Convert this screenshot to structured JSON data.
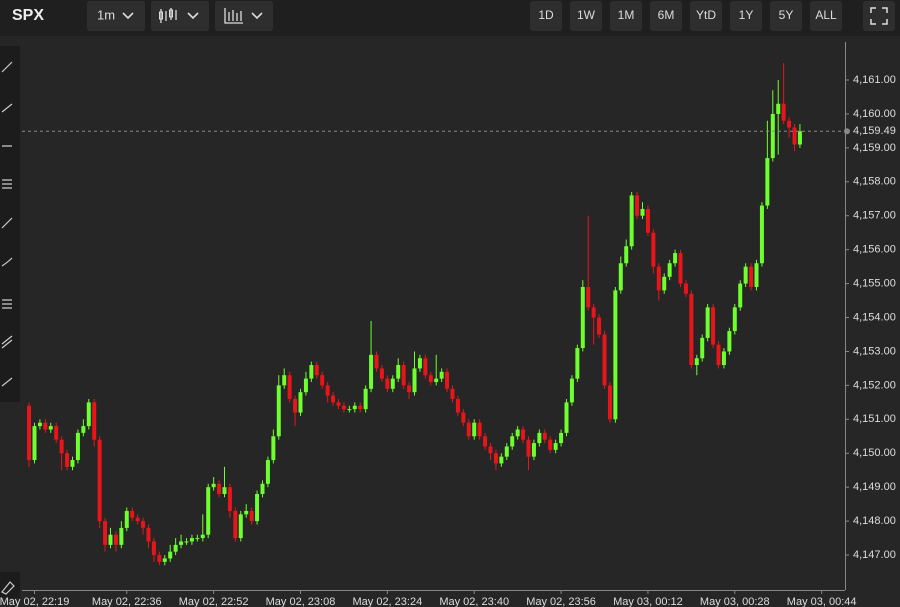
{
  "toolbar": {
    "symbol": "SPX",
    "interval": "1m",
    "ranges": [
      "1D",
      "1W",
      "1M",
      "6M",
      "YtD",
      "1Y",
      "5Y",
      "ALL"
    ]
  },
  "chart_data": {
    "type": "candlestick",
    "up_color": "#6dff2e",
    "down_color": "#e8151b",
    "x": [
      0,
      1,
      2,
      3,
      4,
      5,
      6,
      7,
      8,
      9,
      10,
      11,
      12,
      13,
      14,
      15,
      16,
      17,
      18,
      19,
      20,
      21,
      22,
      23,
      24,
      25,
      26,
      27,
      28,
      29,
      30,
      31,
      32,
      33,
      34,
      35,
      36,
      37,
      38,
      39,
      40,
      41,
      42,
      43,
      44,
      45,
      46,
      47,
      48,
      49,
      50,
      51,
      52,
      53,
      54,
      55,
      56,
      57,
      58,
      59,
      60,
      61,
      62,
      63,
      64,
      65,
      66,
      67,
      68,
      69,
      70,
      71,
      72,
      73,
      74,
      75,
      76,
      77,
      78,
      79,
      80,
      81,
      82,
      83,
      84,
      85,
      86,
      87,
      88,
      89,
      90,
      91,
      92,
      93,
      94,
      95,
      96,
      97,
      98,
      99,
      100,
      101,
      102,
      103,
      104,
      105,
      106,
      107,
      108,
      109,
      110,
      111,
      112,
      113,
      114,
      115,
      116,
      117,
      118,
      119,
      120,
      121,
      122,
      123,
      124,
      125,
      126,
      127,
      128,
      129,
      130,
      131,
      132,
      133,
      134,
      135,
      136,
      137,
      138,
      139,
      140,
      141,
      142
    ],
    "open": [
      4151.4,
      4149.8,
      4150.8,
      4150.9,
      4150.7,
      4150.8,
      4150.4,
      4150.0,
      4149.6,
      4149.8,
      4150.6,
      4150.8,
      4151.5,
      4150.4,
      4148.0,
      4147.3,
      4147.6,
      4147.3,
      4147.8,
      4148.3,
      4148.1,
      4148.0,
      4147.8,
      4147.4,
      4147.0,
      4146.8,
      4146.9,
      4147.1,
      4147.3,
      4147.4,
      4147.4,
      4147.5,
      4147.5,
      4147.6,
      4149.0,
      4149.1,
      4148.8,
      4149.0,
      4148.3,
      4147.5,
      4148.2,
      4148.3,
      4148.0,
      4148.8,
      4149.1,
      4149.8,
      4150.5,
      4152.0,
      4152.3,
      4151.6,
      4151.2,
      4151.8,
      4152.2,
      4152.6,
      4152.3,
      4152.0,
      4151.7,
      4151.5,
      4151.4,
      4151.3,
      4151.3,
      4151.4,
      4151.3,
      4151.9,
      4152.9,
      4152.5,
      4152.2,
      4151.9,
      4152.2,
      4152.6,
      4152.0,
      4151.8,
      4152.5,
      4152.8,
      4152.3,
      4152.1,
      4152.2,
      4152.4,
      4151.9,
      4151.6,
      4151.2,
      4150.9,
      4150.5,
      4150.9,
      4150.5,
      4150.2,
      4150.0,
      4149.7,
      4149.9,
      4150.2,
      4150.5,
      4150.7,
      4150.4,
      4149.9,
      4150.3,
      4150.6,
      4150.4,
      4150.1,
      4150.3,
      4150.6,
      4151.5,
      4152.2,
      4153.1,
      4154.9,
      4154.3,
      4154.0,
      4153.5,
      4152.0,
      4151.0,
      4154.8,
      4155.6,
      4156.1,
      4157.6,
      4157.0,
      4157.2,
      4156.5,
      4155.5,
      4154.8,
      4155.2,
      4155.6,
      4155.9,
      4155.0,
      4154.7,
      4152.6,
      4152.8,
      4153.4,
      4154.3,
      4153.2,
      4152.6,
      4153.0,
      4153.6,
      4154.3,
      4155.0,
      4155.5,
      4154.9,
      4155.6,
      4157.3,
      4158.7,
      4160.0,
      4160.3,
      4159.8,
      4159.6,
      4159.1
    ],
    "high": [
      4151.5,
      4150.9,
      4151.0,
      4151.0,
      4150.9,
      4150.9,
      4150.5,
      4150.1,
      4149.9,
      4150.7,
      4151.0,
      4151.6,
      4151.6,
      4150.5,
      4148.1,
      4147.8,
      4147.7,
      4148.0,
      4148.4,
      4148.4,
      4148.2,
      4148.1,
      4147.9,
      4147.5,
      4147.1,
      4147.0,
      4147.3,
      4147.5,
      4147.6,
      4147.5,
      4147.6,
      4147.6,
      4148.2,
      4149.1,
      4149.3,
      4149.2,
      4149.6,
      4149.1,
      4148.4,
      4148.3,
      4148.5,
      4148.4,
      4148.9,
      4149.2,
      4149.9,
      4150.7,
      4152.3,
      4152.5,
      4152.4,
      4151.7,
      4151.9,
      4152.4,
      4152.7,
      4152.7,
      4152.4,
      4152.1,
      4151.8,
      4151.6,
      4151.5,
      4151.4,
      4151.5,
      4151.5,
      4152.0,
      4153.9,
      4153.0,
      4152.6,
      4152.3,
      4152.3,
      4152.8,
      4152.7,
      4152.1,
      4153.0,
      4152.9,
      4152.9,
      4152.4,
      4152.9,
      4152.5,
      4152.5,
      4152.0,
      4151.7,
      4151.3,
      4151.0,
      4151.0,
      4151.0,
      4150.6,
      4150.3,
      4150.1,
      4150.0,
      4150.3,
      4150.6,
      4150.8,
      4150.8,
      4150.5,
      4150.4,
      4150.7,
      4150.7,
      4150.5,
      4150.4,
      4150.7,
      4151.6,
      4152.3,
      4153.2,
      4155.1,
      4157.0,
      4154.4,
      4154.1,
      4153.6,
      4152.1,
      4154.9,
      4155.8,
      4156.3,
      4157.7,
      4157.7,
      4157.4,
      4157.3,
      4156.6,
      4155.6,
      4155.3,
      4155.7,
      4156.0,
      4156.0,
      4155.1,
      4154.8,
      4152.9,
      4153.5,
      4154.4,
      4154.4,
      4153.3,
      4153.1,
      4153.7,
      4154.4,
      4155.1,
      4155.6,
      4155.6,
      4155.7,
      4157.4,
      4159.8,
      4160.7,
      4161.0,
      4161.5,
      4159.9,
      4159.7,
      4159.7
    ],
    "low": [
      4149.6,
      4149.7,
      4150.7,
      4150.6,
      4150.6,
      4150.3,
      4149.5,
      4149.5,
      4149.5,
      4149.7,
      4150.5,
      4150.7,
      4150.2,
      4147.8,
      4147.1,
      4147.2,
      4147.1,
      4147.2,
      4147.7,
      4148.0,
      4147.9,
      4147.6,
      4147.2,
      4146.8,
      4146.7,
      4146.7,
      4146.8,
      4147.0,
      4147.2,
      4147.3,
      4147.3,
      4147.4,
      4147.4,
      4147.5,
      4148.9,
      4148.7,
      4148.7,
      4148.1,
      4147.4,
      4147.4,
      4148.1,
      4147.9,
      4147.9,
      4148.7,
      4149.0,
      4149.7,
      4150.4,
      4151.9,
      4151.5,
      4150.8,
      4151.1,
      4151.7,
      4152.1,
      4152.2,
      4151.9,
      4151.5,
      4151.4,
      4151.3,
      4151.2,
      4151.2,
      4151.2,
      4151.2,
      4151.2,
      4151.8,
      4152.4,
      4152.1,
      4151.8,
      4151.8,
      4152.1,
      4151.9,
      4151.6,
      4151.7,
      4152.4,
      4152.2,
      4152.0,
      4152.0,
      4152.1,
      4151.8,
      4151.5,
      4151.1,
      4150.8,
      4150.4,
      4150.4,
      4150.4,
      4150.1,
      4149.8,
      4149.5,
      4149.6,
      4149.8,
      4150.1,
      4150.4,
      4150.3,
      4149.5,
      4149.8,
      4150.2,
      4150.3,
      4150.0,
      4150.0,
      4150.2,
      4150.5,
      4151.4,
      4152.1,
      4153.0,
      4154.2,
      4153.2,
      4153.4,
      4151.9,
      4150.9,
      4150.9,
      4154.7,
      4155.5,
      4156.0,
      4156.9,
      4156.9,
      4156.4,
      4155.3,
      4154.5,
      4154.7,
      4155.1,
      4155.5,
      4154.9,
      4154.6,
      4152.5,
      4152.3,
      4152.7,
      4153.3,
      4153.1,
      4152.5,
      4152.5,
      4152.9,
      4153.5,
      4154.2,
      4154.9,
      4154.8,
      4154.8,
      4155.5,
      4157.2,
      4158.6,
      4158.8,
      4159.7,
      4159.3,
      4158.9,
      4159.0
    ],
    "close": [
      4149.8,
      4150.8,
      4150.9,
      4150.7,
      4150.8,
      4150.4,
      4150.0,
      4149.6,
      4149.8,
      4150.6,
      4150.8,
      4151.5,
      4150.4,
      4148.0,
      4147.3,
      4147.6,
      4147.3,
      4147.8,
      4148.3,
      4148.1,
      4148.0,
      4147.8,
      4147.4,
      4147.0,
      4146.8,
      4146.9,
      4147.1,
      4147.3,
      4147.4,
      4147.4,
      4147.5,
      4147.5,
      4147.6,
      4149.0,
      4149.1,
      4148.8,
      4149.0,
      4148.3,
      4147.5,
      4148.2,
      4148.3,
      4148.0,
      4148.8,
      4149.1,
      4149.8,
      4150.5,
      4152.0,
      4152.3,
      4151.6,
      4151.2,
      4151.8,
      4152.2,
      4152.6,
      4152.3,
      4152.0,
      4151.7,
      4151.5,
      4151.4,
      4151.3,
      4151.3,
      4151.4,
      4151.3,
      4151.9,
      4152.9,
      4152.5,
      4152.2,
      4151.9,
      4152.2,
      4152.6,
      4152.0,
      4151.8,
      4152.5,
      4152.8,
      4152.3,
      4152.1,
      4152.2,
      4152.4,
      4151.9,
      4151.6,
      4151.2,
      4150.9,
      4150.5,
      4150.9,
      4150.5,
      4150.2,
      4150.0,
      4149.7,
      4149.9,
      4150.2,
      4150.5,
      4150.7,
      4150.4,
      4149.9,
      4150.3,
      4150.6,
      4150.4,
      4150.1,
      4150.3,
      4150.6,
      4151.5,
      4152.2,
      4153.1,
      4154.9,
      4154.3,
      4154.0,
      4153.5,
      4152.0,
      4151.0,
      4154.8,
      4155.6,
      4156.1,
      4157.6,
      4157.0,
      4157.2,
      4156.5,
      4155.5,
      4154.8,
      4155.2,
      4155.6,
      4155.9,
      4155.0,
      4154.7,
      4152.6,
      4152.8,
      4153.4,
      4154.3,
      4153.2,
      4152.6,
      4153.0,
      4153.6,
      4154.3,
      4155.0,
      4155.5,
      4154.9,
      4155.6,
      4157.3,
      4158.7,
      4160.0,
      4160.3,
      4159.8,
      4159.6,
      4159.1,
      4159.49
    ],
    "xlim": [
      -1.3,
      150.3
    ],
    "xticks": [
      {
        "value": 1,
        "label": "May 02, 22:19"
      },
      {
        "value": 18,
        "label": "May 02, 22:36"
      },
      {
        "value": 34,
        "label": "May 02, 22:52"
      },
      {
        "value": 50,
        "label": "May 02, 23:08"
      },
      {
        "value": 66,
        "label": "May 02, 23:24"
      },
      {
        "value": 82,
        "label": "May 02, 23:40"
      },
      {
        "value": 98,
        "label": "May 02, 23:56"
      },
      {
        "value": 114,
        "label": "May 03, 00:12"
      },
      {
        "value": 130,
        "label": "May 03, 00:28"
      },
      {
        "value": 146,
        "label": "May 03, 00:44"
      }
    ],
    "ylim": [
      4145.97,
      4162.12
    ],
    "yticks": [
      {
        "value": 4147,
        "label": "4,147.00"
      },
      {
        "value": 4148,
        "label": "4,148.00"
      },
      {
        "value": 4149,
        "label": "4,149.00"
      },
      {
        "value": 4150,
        "label": "4,150.00"
      },
      {
        "value": 4151,
        "label": "4,151.00"
      },
      {
        "value": 4152,
        "label": "4,152.00"
      },
      {
        "value": 4153,
        "label": "4,153.00"
      },
      {
        "value": 4154,
        "label": "4,154.00"
      },
      {
        "value": 4155,
        "label": "4,155.00"
      },
      {
        "value": 4156,
        "label": "4,156.00"
      },
      {
        "value": 4157,
        "label": "4,157.00"
      },
      {
        "value": 4158,
        "label": "4,158.00"
      },
      {
        "value": 4159,
        "label": "4,159.00"
      },
      {
        "value": 4160,
        "label": "4,160.00"
      },
      {
        "value": 4161,
        "label": "4,161.00"
      }
    ],
    "last_price": {
      "value": 4159.49,
      "label": "4,159.49"
    }
  }
}
